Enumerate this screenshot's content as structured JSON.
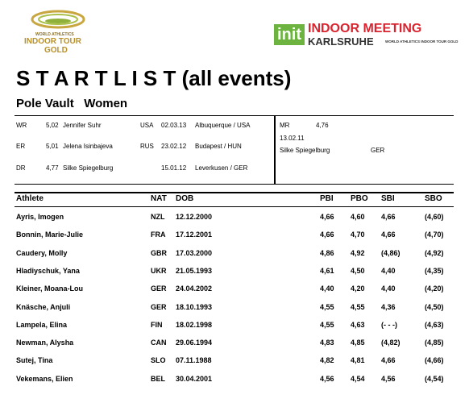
{
  "logo_left": {
    "line1": "WORLD ATHLETICS",
    "line2": "INDOOR TOUR",
    "line3": "GOLD"
  },
  "logo_right": {
    "badge": "init",
    "line1": "INDOOR MEETING",
    "line2": "KARLSRUHE",
    "tagline": "WORLD ATHLETICS INDOOR TOUR GOLD"
  },
  "title": "S T A R T L I S T (all events)",
  "event": "Pole Vault   Women",
  "records": [
    {
      "code": "WR",
      "mark": "5,02",
      "name": "Jennifer Suhr",
      "nat": "USA",
      "date": "02.03.13",
      "venue": "Albuquerque / USA"
    },
    {
      "code": "ER",
      "mark": "5,01",
      "name": "Jelena Isinbajeva",
      "nat": "RUS",
      "date": "23.02.12",
      "venue": "Budapest / HUN"
    },
    {
      "code": "DR",
      "mark": "4,77",
      "name": "Silke Spiegelburg",
      "nat": null,
      "date": "15.01.12",
      "venue": "Leverkusen / GER"
    }
  ],
  "meeting_record": {
    "code": "MR",
    "mark": "4,76",
    "date": "13.02.11",
    "name": "Silke Spiegelburg",
    "nat": "GER"
  },
  "table": {
    "headers": [
      "Athlete",
      "NAT",
      "DOB",
      "PBI",
      "PBO",
      "SBI",
      "SBO"
    ],
    "rows": [
      [
        "Ayris, Imogen",
        "NZL",
        "12.12.2000",
        "4,66",
        "4,60",
        "4,66",
        "(4,60)"
      ],
      [
        "Bonnin, Marie-Julie",
        "FRA",
        "17.12.2001",
        "4,66",
        "4,70",
        "4,66",
        "(4,70)"
      ],
      [
        "Caudery, Molly",
        "GBR",
        "17.03.2000",
        "4,86",
        "4,92",
        "(4,86)",
        "(4,92)"
      ],
      [
        "Hladiyschuk, Yana",
        "UKR",
        "21.05.1993",
        "4,61",
        "4,50",
        "4,40",
        "(4,35)"
      ],
      [
        "Kleiner, Moana-Lou",
        "GER",
        "24.04.2002",
        "4,40",
        "4,20",
        "4,40",
        "(4,20)"
      ],
      [
        "Knäsche, Anjuli",
        "GER",
        "18.10.1993",
        "4,55",
        "4,55",
        "4,36",
        "(4,50)"
      ],
      [
        "Lampela, Elina",
        "FIN",
        "18.02.1998",
        "4,55",
        "4,63",
        "(- - -)",
        "(4,63)"
      ],
      [
        "Newman, Alysha",
        "CAN",
        "29.06.1994",
        "4,83",
        "4,85",
        "(4,82)",
        "(4,85)"
      ],
      [
        "Sutej, Tina",
        "SLO",
        "07.11.1988",
        "4,82",
        "4,81",
        "4,66",
        "(4,66)"
      ],
      [
        "Vekemans, Elien",
        "BEL",
        "30.04.2001",
        "4,56",
        "4,54",
        "4,56",
        "(4,54)"
      ]
    ]
  }
}
